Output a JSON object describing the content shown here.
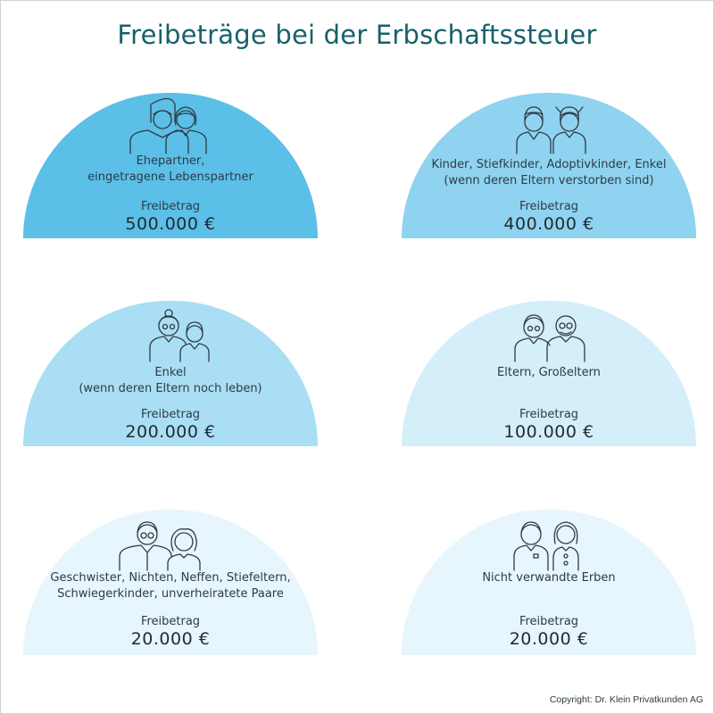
{
  "title": "Freibeträge bei der Erbschaftssteuer",
  "colors": {
    "title": "#17616b",
    "tier1": "#5bbfe8",
    "tier2": "#8fd3f0",
    "tier3": "#aadef4",
    "tier4": "#d4eefa",
    "tier5": "#e7f5fc"
  },
  "cards": [
    {
      "icons": [
        "man-icon",
        "woman-icon"
      ],
      "group_lines": [
        "Ehepartner,",
        "eingetragene Lebenspartner"
      ],
      "label": "Freibetrag",
      "amount": "500.000 €"
    },
    {
      "icons": [
        "boy-icon",
        "girl-icon"
      ],
      "group_lines": [
        "Kinder, Stiefkinder, Adoptivkinder, Enkel",
        "(wenn deren Eltern verstorben sind)"
      ],
      "label": "Freibetrag",
      "amount": "400.000 €"
    },
    {
      "icons": [
        "grandmother-icon",
        "grandchild-icon"
      ],
      "group_lines": [
        "Enkel",
        "(wenn deren Eltern noch leben)"
      ],
      "label": "Freibetrag",
      "amount": "200.000 €"
    },
    {
      "icons": [
        "grandmother-icon",
        "grandfather-icon"
      ],
      "group_lines": [
        "Eltern, Großeltern"
      ],
      "label": "Freibetrag",
      "amount": "100.000 €"
    },
    {
      "icons": [
        "man-with-glasses-icon",
        "woman-with-curly-hair-icon"
      ],
      "group_lines": [
        "Geschwister, Nichten, Neffen, Stiefeltern,",
        "Schwiegerkinder, unverheiratete Paare"
      ],
      "label": "Freibetrag",
      "amount": "20.000 €"
    },
    {
      "icons": [
        "man-icon",
        "woman-icon"
      ],
      "group_lines": [
        "Nicht verwandte Erben"
      ],
      "label": "Freibetrag",
      "amount": "20.000 €"
    }
  ],
  "copyright": "Copyright: Dr. Klein Privatkunden AG"
}
